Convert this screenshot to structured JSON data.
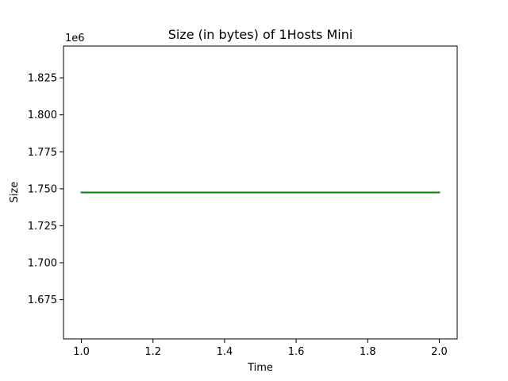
{
  "chart_data": {
    "type": "line",
    "title": "Size (in bytes) of 1Hosts Mini",
    "xlabel": "Time",
    "ylabel": "Size",
    "y_offset_label": "1e6",
    "xlim": [
      0.95,
      2.05
    ],
    "ylim": [
      1.6485,
      1.8465
    ],
    "x_ticks": [
      1.0,
      1.2,
      1.4,
      1.6,
      1.8,
      2.0
    ],
    "x_tick_labels": [
      "1.0",
      "1.2",
      "1.4",
      "1.6",
      "1.8",
      "2.0"
    ],
    "y_ticks": [
      1.675,
      1.7,
      1.725,
      1.75,
      1.775,
      1.8,
      1.825
    ],
    "y_tick_labels": [
      "1.675",
      "1.700",
      "1.725",
      "1.750",
      "1.775",
      "1.800",
      "1.825"
    ],
    "grid": false,
    "series": [
      {
        "x": [
          1,
          2
        ],
        "y": [
          1.7475,
          1.7475
        ],
        "color": "#008000"
      }
    ]
  }
}
